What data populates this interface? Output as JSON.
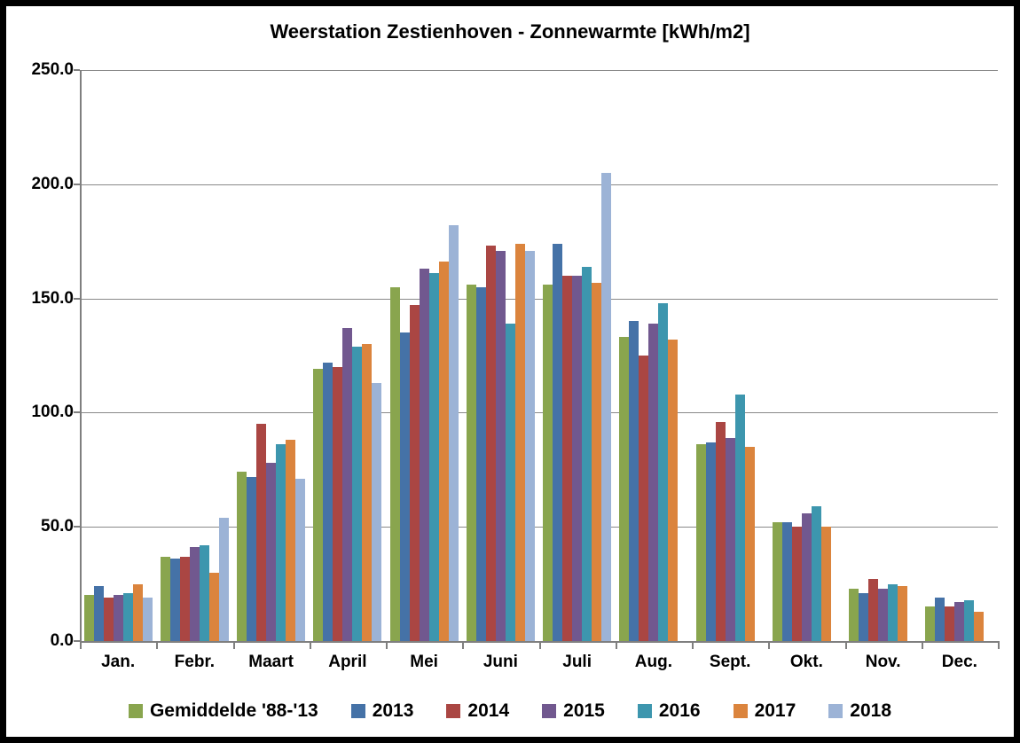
{
  "chart_data": {
    "type": "bar",
    "title": "Weerstation Zestienhoven - Zonnewarmte [kWh/m2]",
    "xlabel": "",
    "ylabel": "",
    "ylim": [
      0,
      250
    ],
    "y_tick_values": [
      250,
      200,
      150,
      100,
      50,
      0
    ],
    "y_tick_labels": [
      "250.0",
      "200.0",
      "150.0",
      "100.0",
      "50.0",
      "0.0"
    ],
    "grid": true,
    "legend_position": "bottom",
    "categories": [
      "Jan.",
      "Febr.",
      "Maart",
      "April",
      "Mei",
      "Juni",
      "Juli",
      "Aug.",
      "Sept.",
      "Okt.",
      "Nov.",
      "Dec."
    ],
    "series": [
      {
        "name": "Gemiddelde '88-'13",
        "color": "#89A54E",
        "values": [
          20,
          37,
          74,
          119,
          155,
          156,
          156,
          133,
          86,
          52,
          23,
          15
        ]
      },
      {
        "name": "2013",
        "color": "#4572A7",
        "values": [
          24,
          36,
          72,
          122,
          135,
          155,
          174,
          140,
          87,
          52,
          21,
          19
        ]
      },
      {
        "name": "2014",
        "color": "#AA4643",
        "values": [
          19,
          37,
          95,
          120,
          147,
          173,
          160,
          125,
          96,
          50,
          27,
          15
        ]
      },
      {
        "name": "2015",
        "color": "#71588F",
        "values": [
          20,
          41,
          78,
          137,
          163,
          171,
          160,
          139,
          89,
          56,
          23,
          17
        ]
      },
      {
        "name": "2016",
        "color": "#3D96AE",
        "values": [
          21,
          42,
          86,
          129,
          161,
          139,
          164,
          148,
          108,
          59,
          25,
          18
        ]
      },
      {
        "name": "2017",
        "color": "#DB843D",
        "values": [
          25,
          30,
          88,
          130,
          166,
          174,
          157,
          132,
          85,
          50,
          24,
          13
        ]
      },
      {
        "name": "2018",
        "color": "#9CB3D6",
        "values": [
          19,
          54,
          71,
          113,
          182,
          171,
          205,
          null,
          null,
          null,
          null,
          null
        ]
      }
    ]
  },
  "styles": {
    "frame_color": "#000000",
    "background": "#FFFFFF",
    "grid_color": "#898989",
    "axis_color": "#7F7F7F",
    "text_color": "#000000"
  }
}
